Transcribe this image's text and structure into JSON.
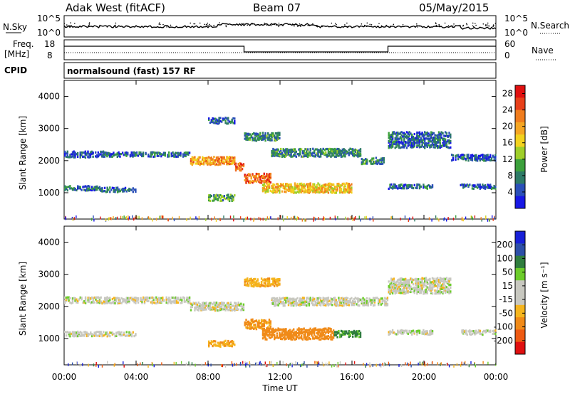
{
  "header": {
    "station": "Adak West (fitACF)",
    "beam": "Beam 07",
    "date": "05/May/2015"
  },
  "noise_panel": {
    "left_label": "N.Sky",
    "right_label": "N.Search",
    "left_ticks": [
      "10^5",
      "10^0"
    ],
    "right_ticks": [
      "10^5",
      "10^0"
    ]
  },
  "freq_panel": {
    "left_label_1": "Freq.",
    "left_label_2": "[MHz]",
    "right_label": "Nave",
    "left_ticks": [
      "18",
      "8"
    ],
    "right_ticks": [
      "60",
      "0"
    ]
  },
  "cpid": {
    "label": "CPID",
    "value": "normalsound (fast) 157 RF"
  },
  "x_ticks": [
    "00:00",
    "04:00",
    "08:00",
    "12:00",
    "16:00",
    "20:00",
    "00:00"
  ],
  "x_label": "Time UT",
  "colors": {
    "power": [
      "#1818e6",
      "#2a4fb8",
      "#2d7a66",
      "#3ca03c",
      "#9fcf2a",
      "#f2d21e",
      "#f5a623",
      "#f07d1e",
      "#e8401a",
      "#e01010"
    ],
    "velocity": [
      "#1820d8",
      "#2d4fa8",
      "#2f7d3e",
      "#6ccc2a",
      "#c8c8c0",
      "#c8c8c0",
      "#f5b51e",
      "#f08a18",
      "#ee5a12",
      "#e01010"
    ]
  },
  "chart_data": [
    {
      "type": "heatmap",
      "quantity": "power",
      "ylabel": "Slant Range [km]",
      "xlabel": "Time UT",
      "x_range_hours": [
        0,
        24
      ],
      "ylim": [
        180,
        4500
      ],
      "y_ticks": [
        1000,
        2000,
        3000,
        4000
      ],
      "colorbar_label": "Power [dB]",
      "colorbar_ticks": [
        "4",
        "8",
        "12",
        "16",
        "20",
        "24",
        "28"
      ],
      "colorbar_range": [
        0,
        30
      ],
      "regions": [
        {
          "t_start": 0.0,
          "t_end": 2.2,
          "range_km": 2250,
          "width_km": 200,
          "level": 4
        },
        {
          "t_start": 2.2,
          "t_end": 7.0,
          "range_km": 2250,
          "width_km": 150,
          "level": 6
        },
        {
          "t_start": 7.0,
          "t_end": 9.5,
          "range_km": 2050,
          "width_km": 250,
          "level": 20
        },
        {
          "t_start": 9.5,
          "t_end": 10.0,
          "range_km": 1850,
          "width_km": 250,
          "level": 24
        },
        {
          "t_start": 10.0,
          "t_end": 11.5,
          "range_km": 1500,
          "width_km": 300,
          "level": 24
        },
        {
          "t_start": 11.5,
          "t_end": 16.5,
          "range_km": 2300,
          "width_km": 250,
          "level": 8
        },
        {
          "t_start": 16.5,
          "t_end": 17.8,
          "range_km": 2050,
          "width_km": 200,
          "level": 8
        },
        {
          "t_start": 11.0,
          "t_end": 16.0,
          "range_km": 1200,
          "width_km": 300,
          "level": 18
        },
        {
          "t_start": 0.0,
          "t_end": 2.0,
          "range_km": 1200,
          "width_km": 150,
          "level": 6
        },
        {
          "t_start": 2.0,
          "t_end": 4.0,
          "range_km": 1150,
          "width_km": 150,
          "level": 5
        },
        {
          "t_start": 8.0,
          "t_end": 9.5,
          "range_km": 900,
          "width_km": 200,
          "level": 10
        },
        {
          "t_start": 10.0,
          "t_end": 12.0,
          "range_km": 2800,
          "width_km": 250,
          "level": 8
        },
        {
          "t_start": 8.0,
          "t_end": 9.5,
          "range_km": 3300,
          "width_km": 200,
          "level": 6
        },
        {
          "t_start": 18.0,
          "t_end": 21.5,
          "range_km": 2700,
          "width_km": 500,
          "level": 6
        },
        {
          "t_start": 18.0,
          "t_end": 20.5,
          "range_km": 1250,
          "width_km": 150,
          "level": 6
        },
        {
          "t_start": 22.0,
          "t_end": 24.0,
          "range_km": 1250,
          "width_km": 150,
          "level": 6
        },
        {
          "t_start": 21.5,
          "t_end": 24.0,
          "range_km": 2150,
          "width_km": 200,
          "level": 5
        }
      ]
    },
    {
      "type": "heatmap",
      "quantity": "velocity",
      "ylabel": "Slant Range [km]",
      "xlabel": "Time UT",
      "x_range_hours": [
        0,
        24
      ],
      "ylim": [
        180,
        4500
      ],
      "y_ticks": [
        1000,
        2000,
        3000,
        4000
      ],
      "colorbar_label": "Velocity [m s⁻¹]",
      "colorbar_ticks": [
        "200",
        "100",
        "50",
        "15",
        "-15",
        "-50",
        "-100",
        "-200"
      ],
      "regions": [
        {
          "t_start": 0.0,
          "t_end": 7.0,
          "range_km": 2250,
          "width_km": 200,
          "velocity": 0
        },
        {
          "t_start": 7.0,
          "t_end": 10.0,
          "range_km": 2050,
          "width_km": 250,
          "velocity": 0
        },
        {
          "t_start": 10.0,
          "t_end": 11.5,
          "range_km": 1500,
          "width_km": 300,
          "velocity": -60
        },
        {
          "t_start": 11.5,
          "t_end": 18.0,
          "range_km": 2200,
          "width_km": 250,
          "velocity": 0
        },
        {
          "t_start": 11.0,
          "t_end": 15.0,
          "range_km": 1200,
          "width_km": 350,
          "velocity": -80
        },
        {
          "t_start": 15.0,
          "t_end": 16.5,
          "range_km": 1200,
          "width_km": 200,
          "velocity": 60
        },
        {
          "t_start": 0.0,
          "t_end": 4.0,
          "range_km": 1200,
          "width_km": 150,
          "velocity": 0
        },
        {
          "t_start": 8.0,
          "t_end": 9.5,
          "range_km": 900,
          "width_km": 200,
          "velocity": -40
        },
        {
          "t_start": 10.0,
          "t_end": 12.0,
          "range_km": 2800,
          "width_km": 250,
          "velocity": -40
        },
        {
          "t_start": 18.0,
          "t_end": 21.5,
          "range_km": 2700,
          "width_km": 500,
          "velocity": 0
        },
        {
          "t_start": 18.0,
          "t_end": 20.5,
          "range_km": 1250,
          "width_km": 150,
          "velocity": 0
        },
        {
          "t_start": 22.0,
          "t_end": 24.0,
          "range_km": 1250,
          "width_km": 150,
          "velocity": 0
        }
      ]
    }
  ]
}
